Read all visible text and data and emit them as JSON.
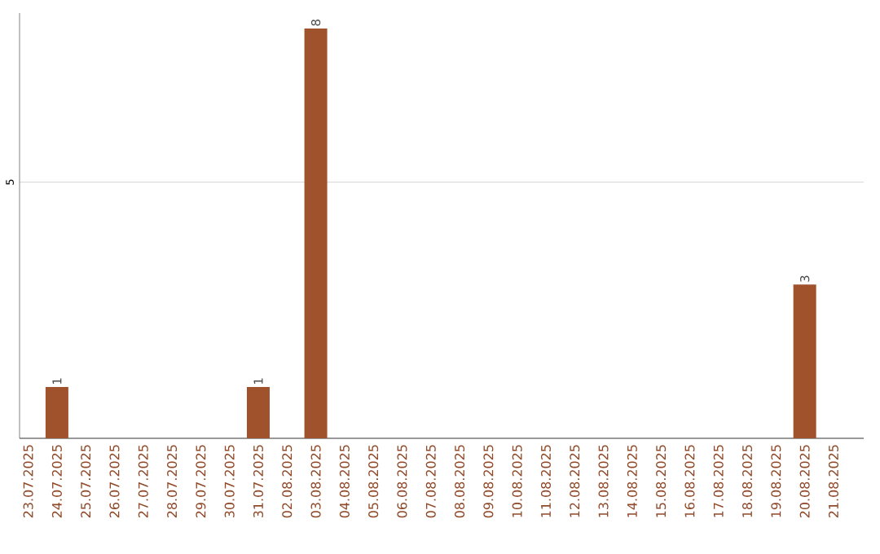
{
  "chart_data": {
    "type": "bar",
    "categories": [
      "23.07.2025",
      "24.07.2025",
      "25.07.2025",
      "26.07.2025",
      "27.07.2025",
      "28.07.2025",
      "29.07.2025",
      "30.07.2025",
      "31.07.2025",
      "02.08.2025",
      "03.08.2025",
      "04.08.2025",
      "05.08.2025",
      "06.08.2025",
      "07.08.2025",
      "08.08.2025",
      "09.08.2025",
      "10.08.2025",
      "11.08.2025",
      "12.08.2025",
      "13.08.2025",
      "14.08.2025",
      "15.08.2025",
      "16.08.2025",
      "17.08.2025",
      "18.08.2025",
      "19.08.2025",
      "20.08.2025",
      "21.08.2025"
    ],
    "values": [
      0,
      1,
      0,
      0,
      0,
      0,
      0,
      0,
      1,
      0,
      8,
      0,
      0,
      0,
      0,
      0,
      0,
      0,
      0,
      0,
      0,
      0,
      0,
      0,
      0,
      0,
      0,
      3,
      0
    ],
    "value_labels": [
      null,
      "1",
      null,
      null,
      null,
      null,
      null,
      null,
      "1",
      null,
      "8",
      null,
      null,
      null,
      null,
      null,
      null,
      null,
      null,
      null,
      null,
      null,
      null,
      null,
      null,
      null,
      null,
      "3",
      null
    ],
    "color": "#a0522d",
    "ylim": [
      0,
      8.3
    ],
    "yticks": [
      5
    ],
    "grid": "y"
  }
}
